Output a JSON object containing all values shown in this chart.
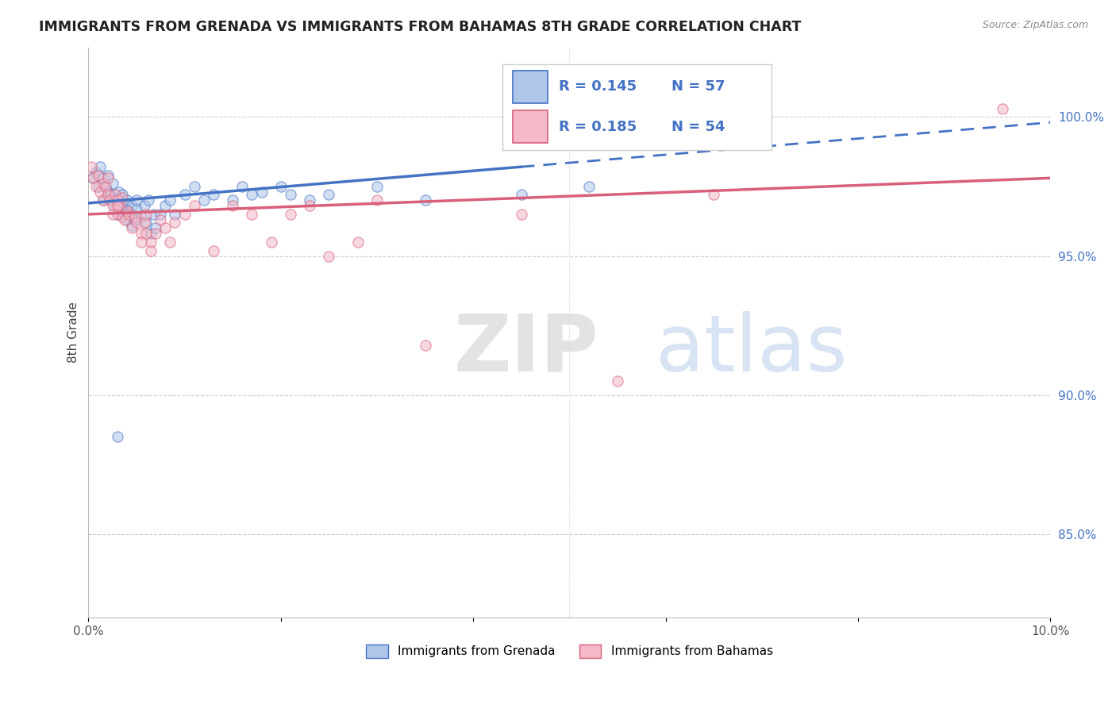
{
  "title": "IMMIGRANTS FROM GRENADA VS IMMIGRANTS FROM BAHAMAS 8TH GRADE CORRELATION CHART",
  "source": "Source: ZipAtlas.com",
  "ylabel": "8th Grade",
  "xlim": [
    0.0,
    10.0
  ],
  "ylim": [
    82.0,
    102.5
  ],
  "yticks": [
    85.0,
    90.0,
    95.0,
    100.0
  ],
  "ytick_labels": [
    "85.0%",
    "90.0%",
    "95.0%",
    "100.0%"
  ],
  "legend_r_blue": "R = 0.145",
  "legend_n_blue": "N = 57",
  "legend_r_pink": "R = 0.185",
  "legend_n_pink": "N = 54",
  "legend_label_blue": "Immigrants from Grenada",
  "legend_label_pink": "Immigrants from Bahamas",
  "watermark_zip": "ZIP",
  "watermark_atlas": "atlas",
  "blue_color": "#aec6e8",
  "pink_color": "#f4b8c8",
  "blue_line_color": "#4472c4",
  "pink_line_color": "#d9607a",
  "scatter_alpha": 0.55,
  "scatter_size": 90,
  "blue_x": [
    0.05,
    0.08,
    0.1,
    0.12,
    0.15,
    0.15,
    0.18,
    0.2,
    0.2,
    0.22,
    0.25,
    0.25,
    0.28,
    0.3,
    0.3,
    0.32,
    0.32,
    0.35,
    0.35,
    0.38,
    0.38,
    0.4,
    0.4,
    0.42,
    0.45,
    0.45,
    0.48,
    0.5,
    0.5,
    0.55,
    0.58,
    0.6,
    0.62,
    0.65,
    0.68,
    0.7,
    0.75,
    0.8,
    0.85,
    0.9,
    1.0,
    1.1,
    1.2,
    1.3,
    1.5,
    1.6,
    1.7,
    1.8,
    2.0,
    2.1,
    2.3,
    2.5,
    3.0,
    3.5,
    4.5,
    5.2,
    0.3
  ],
  "blue_y": [
    97.8,
    98.0,
    97.5,
    98.2,
    97.0,
    97.8,
    97.5,
    97.3,
    97.9,
    97.2,
    97.0,
    97.6,
    96.8,
    97.1,
    96.5,
    97.0,
    97.3,
    96.8,
    97.2,
    96.5,
    96.9,
    96.3,
    97.0,
    96.6,
    96.1,
    96.8,
    96.3,
    96.7,
    97.0,
    96.4,
    96.8,
    96.2,
    97.0,
    95.8,
    96.5,
    96.0,
    96.5,
    96.8,
    97.0,
    96.5,
    97.2,
    97.5,
    97.0,
    97.2,
    97.0,
    97.5,
    97.2,
    97.3,
    97.5,
    97.2,
    97.0,
    97.2,
    97.5,
    97.0,
    97.2,
    97.5,
    88.5
  ],
  "pink_x": [
    0.03,
    0.05,
    0.08,
    0.1,
    0.12,
    0.15,
    0.15,
    0.18,
    0.2,
    0.2,
    0.22,
    0.25,
    0.28,
    0.3,
    0.3,
    0.32,
    0.35,
    0.35,
    0.38,
    0.4,
    0.42,
    0.45,
    0.48,
    0.5,
    0.55,
    0.58,
    0.6,
    0.65,
    0.7,
    0.75,
    0.8,
    0.85,
    0.9,
    1.0,
    1.1,
    1.3,
    1.5,
    1.7,
    1.9,
    2.1,
    2.3,
    2.5,
    2.8,
    3.0,
    3.5,
    4.5,
    5.5,
    6.5,
    9.5,
    0.25,
    0.3,
    0.55,
    0.6,
    0.65
  ],
  "pink_y": [
    98.2,
    97.8,
    97.5,
    97.9,
    97.3,
    97.6,
    97.0,
    97.5,
    97.2,
    97.8,
    97.0,
    96.8,
    97.2,
    96.5,
    97.0,
    96.8,
    97.1,
    96.4,
    96.3,
    96.6,
    96.5,
    96.0,
    96.4,
    96.2,
    95.8,
    96.2,
    96.5,
    95.5,
    95.8,
    96.3,
    96.0,
    95.5,
    96.2,
    96.5,
    96.8,
    95.2,
    96.8,
    96.5,
    95.5,
    96.5,
    96.8,
    95.0,
    95.5,
    97.0,
    91.8,
    96.5,
    90.5,
    97.2,
    100.3,
    96.5,
    96.8,
    95.5,
    95.8,
    95.2
  ],
  "blue_trendline_x0": 0.0,
  "blue_trendline_y0": 96.9,
  "blue_trendline_x1": 10.0,
  "blue_trendline_y1": 99.8,
  "blue_solid_end": 4.5,
  "pink_trendline_x0": 0.0,
  "pink_trendline_y0": 96.5,
  "pink_trendline_x1": 10.0,
  "pink_trendline_y1": 97.8
}
